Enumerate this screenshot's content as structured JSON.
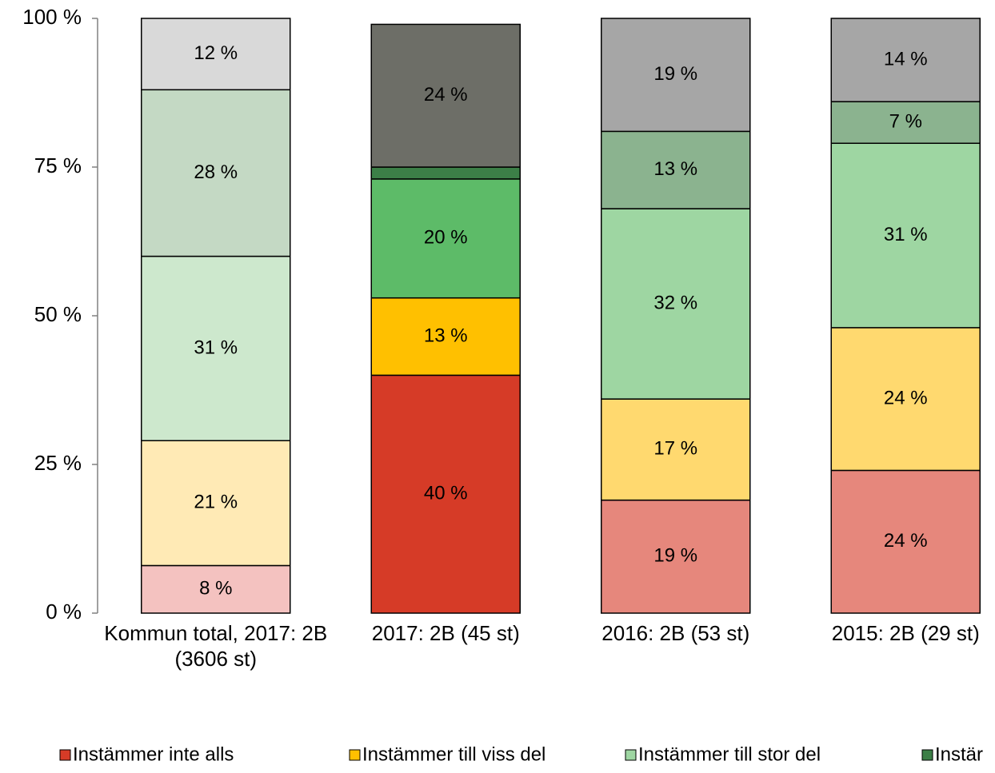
{
  "chart_data": {
    "type": "stacked_bar",
    "categories": [
      "Kommun total, 2017: 2B (3606 st)",
      "2017: 2B (45 st)",
      "2016: 2B (53 st)",
      "2015: 2B (29 st)"
    ],
    "series": [
      {
        "name": "Instämmer inte alls",
        "color": "#d63b27",
        "colors": [
          "#f4c2c0",
          "#d63b27",
          "#e6877c",
          "#e6877c"
        ],
        "values": [
          8,
          40,
          19,
          24
        ],
        "value_labels": [
          "8 %",
          "40 %",
          "19 %",
          "24 %"
        ]
      },
      {
        "name": "Instämmer till viss del",
        "color": "#ffc000",
        "colors": [
          "#ffeab5",
          "#ffc000",
          "#ffd96f",
          "#ffd96f"
        ],
        "values": [
          21,
          13,
          17,
          24
        ],
        "value_labels": [
          "21 %",
          "13 %",
          "17 %",
          "24 %"
        ]
      },
      {
        "name": "Instämmer till stor del",
        "color": "#9ed6a2",
        "colors": [
          "#cde8cd",
          "#5dbb68",
          "#9ed6a2",
          "#9ed6a2"
        ],
        "values": [
          31,
          20,
          32,
          31
        ],
        "value_labels": [
          "31 %",
          "20 %",
          "32 %",
          "31 %"
        ]
      },
      {
        "name": "Instär",
        "color": "#3c7f47",
        "colors": [
          "#c4d9c4",
          "#3c7f47",
          "#8bb38f",
          "#8bb38f"
        ],
        "values": [
          28,
          2,
          13,
          7
        ],
        "value_labels": [
          "28 %",
          null,
          "13 %",
          "7 %"
        ]
      },
      {
        "colors": [
          "#d9d9d9",
          "#6d6e67",
          "#a6a6a6",
          "#a6a6a6"
        ],
        "values": [
          12,
          24,
          19,
          14
        ],
        "value_labels": [
          "12 %",
          "24 %",
          "19 %",
          "14 %"
        ]
      }
    ],
    "ylim": [
      0,
      100
    ],
    "yticks": [
      {
        "value": 0,
        "label": "0 %"
      },
      {
        "value": 25,
        "label": "25 %"
      },
      {
        "value": 50,
        "label": "50 %"
      },
      {
        "value": 75,
        "label": "75 %"
      },
      {
        "value": 100,
        "label": "100 %"
      }
    ],
    "grid": false,
    "legend": "bottom"
  }
}
